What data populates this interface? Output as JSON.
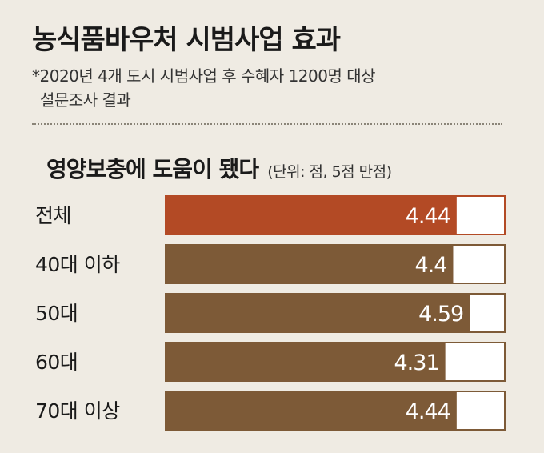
{
  "title": "농식품바우처 시범사업 효과",
  "note": {
    "line1": "*2020년 4개 도시 시범사업 후 수혜자 1200명 대상",
    "line2": "설문조사 결과"
  },
  "colors": {
    "highlight_bar": "#b34a25",
    "bar": "#7d5a37",
    "remainder": "#ffffff",
    "background": "#efebe3"
  },
  "chart_data": {
    "type": "bar",
    "orientation": "horizontal",
    "title": "영양보충에 도움이 됐다",
    "unit": "(단위: 점, 5점 만점)",
    "categories": [
      "전체",
      "40대 이하",
      "50대",
      "60대",
      "70대 이상"
    ],
    "values": [
      4.44,
      4.4,
      4.59,
      4.31,
      4.44
    ],
    "value_labels": [
      "4.44",
      "4.4",
      "4.59",
      "4.31",
      "4.44"
    ],
    "xlim": [
      0,
      5
    ],
    "highlight_index": 0,
    "grid": false
  }
}
